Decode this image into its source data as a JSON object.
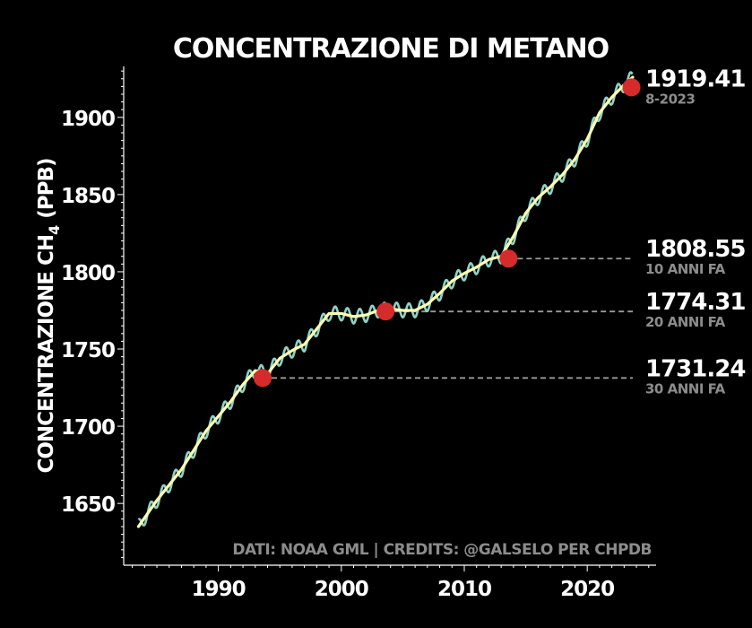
{
  "chart_data": {
    "type": "line",
    "title": "CONCENTRAZIONE DI METANO",
    "ylabel_main": "CONCENTRAZIONE CH",
    "ylabel_sub": "4",
    "ylabel_unit": "(PPB)",
    "xlabel": "",
    "xlim": [
      1982.3,
      2025.6
    ],
    "ylim": [
      1610,
      1933
    ],
    "x_ticks": [
      1990,
      2000,
      2010,
      2020
    ],
    "y_ticks": [
      1650,
      1700,
      1750,
      1800,
      1850,
      1900
    ],
    "grid": false,
    "colors": {
      "background": "#000000",
      "monthly": "#8fd3c5",
      "trend": "#fcfcb4",
      "marker": "#d62b2b",
      "reference": "#9a9a9a",
      "subtext": "#8c8c8c"
    },
    "series": [
      {
        "kind": "monthly_seasonal",
        "amplitude": 9,
        "x": [
          1983.5,
          1985,
          1987,
          1989,
          1991,
          1992,
          1993,
          1994,
          1995,
          1996,
          1997,
          1998,
          1999,
          2000,
          2001,
          2002,
          2003,
          2004,
          2005,
          2006,
          2007,
          2008,
          2009,
          2010,
          2011,
          2012,
          2013,
          2014,
          2015,
          2016,
          2017,
          2018,
          2019,
          2020,
          2021,
          2022,
          2023,
          2023.7
        ],
        "values": [
          1635,
          1652,
          1672,
          1697,
          1716,
          1727,
          1736,
          1734,
          1744,
          1749,
          1753,
          1763,
          1773,
          1773,
          1771,
          1772,
          1775,
          1776,
          1775,
          1775,
          1779,
          1786,
          1794,
          1799,
          1803,
          1808,
          1810,
          1823,
          1838,
          1848,
          1855,
          1863,
          1873,
          1886,
          1903,
          1913,
          1921,
          1926
        ]
      },
      {
        "kind": "trend",
        "x": [
          1983.5,
          1985,
          1987,
          1989,
          1991,
          1992,
          1993,
          1994,
          1995,
          1996,
          1997,
          1998,
          1999,
          2000,
          2001,
          2002,
          2003,
          2004,
          2005,
          2006,
          2007,
          2008,
          2009,
          2010,
          2011,
          2012,
          2013,
          2014,
          2015,
          2016,
          2017,
          2018,
          2019,
          2020,
          2021,
          2022,
          2023,
          2023.7
        ],
        "values": [
          1635,
          1652,
          1672,
          1697,
          1716,
          1727,
          1736,
          1734,
          1744,
          1749,
          1753,
          1763,
          1773,
          1773,
          1771,
          1772,
          1775,
          1776,
          1775,
          1775,
          1779,
          1786,
          1794,
          1799,
          1803,
          1808,
          1810,
          1823,
          1838,
          1848,
          1855,
          1863,
          1873,
          1886,
          1903,
          1913,
          1921,
          1926
        ]
      }
    ],
    "highlights": [
      {
        "x": 2023.6,
        "y": 1919.41,
        "value_label": "1919.41",
        "sub_label": "8-2023",
        "reference_line": false
      },
      {
        "x": 2013.6,
        "y": 1808.55,
        "value_label": "1808.55",
        "sub_label": "10 ANNI FA",
        "reference_line": true
      },
      {
        "x": 2003.6,
        "y": 1774.31,
        "value_label": "1774.31",
        "sub_label": "20 ANNI FA",
        "reference_line": true
      },
      {
        "x": 1993.6,
        "y": 1731.24,
        "value_label": "1731.24",
        "sub_label": "30 ANNI FA",
        "reference_line": true
      }
    ],
    "credits": "DATI: NOAA GML | CREDITS: @GALSELO PER CHPDB"
  }
}
